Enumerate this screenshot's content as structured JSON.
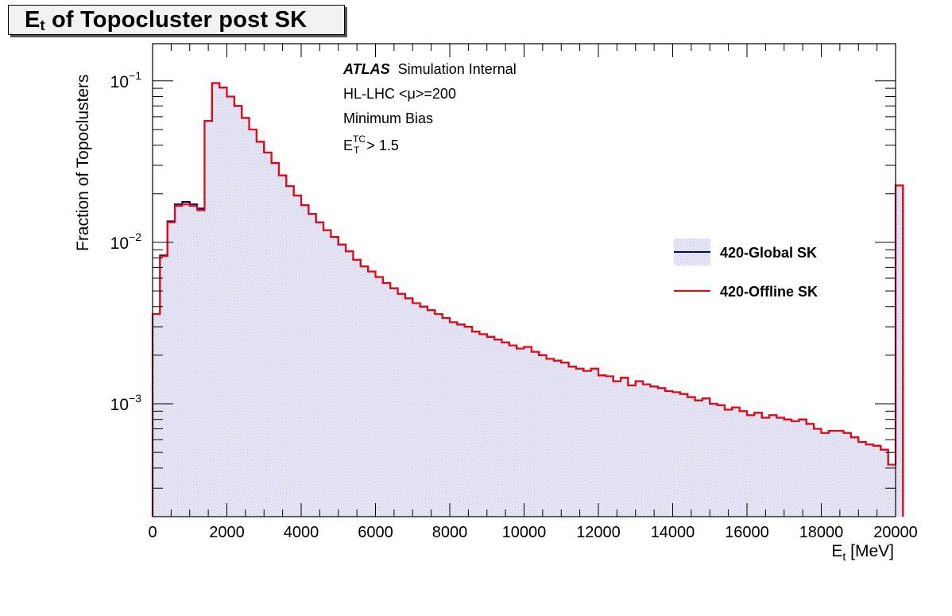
{
  "title": {
    "main": "E",
    "sub": "t",
    "rest": " of Topocluster post SK"
  },
  "annotations": {
    "atlas": "ATLAS",
    "status": "Simulation Internal",
    "line2": "HL-LHC <μ>=200",
    "line3": "Minimum Bias",
    "line4_main": "E",
    "line4_sup": "TC",
    "line4_sub": "T",
    "line4_rest": " > 1.5"
  },
  "axes": {
    "ylabel": "Fraction of Topoclusters",
    "xlabel_main": "E",
    "xlabel_sub": "t",
    "xlabel_rest": " [MeV]",
    "x_ticks": [
      "0",
      "2000",
      "4000",
      "6000",
      "8000",
      "10000",
      "12000",
      "14000",
      "16000",
      "18000",
      "20000"
    ],
    "y_ticks": [
      {
        "base": "10",
        "exp": "−1",
        "value": 0.1
      },
      {
        "base": "10",
        "exp": "−2",
        "value": 0.01
      },
      {
        "base": "10",
        "exp": "−3",
        "value": 0.001
      }
    ]
  },
  "legend": [
    {
      "label": "420-Global SK",
      "color": "#00008b"
    },
    {
      "label": "420-Offline SK",
      "color": "#ff0000"
    }
  ],
  "colors": {
    "global": "#00008b",
    "offline": "#ff0000",
    "fill": "#dcdcf5"
  },
  "chart_data": {
    "type": "histogram",
    "title": "Et of Topocluster post SK",
    "xlabel": "Et [MeV]",
    "ylabel": "Fraction of Topoclusters",
    "y_scale": "log",
    "xlim": [
      0,
      20000
    ],
    "ylim": [
      0.0002,
      0.17
    ],
    "bin_width": 200,
    "legend_position": "right",
    "series": [
      {
        "name": "420-Global SK",
        "values": [
          0.0036,
          0.0083,
          0.0135,
          0.0172,
          0.0178,
          0.0172,
          0.0162,
          0.0565,
          0.097,
          0.091,
          0.08,
          0.07,
          0.059,
          0.05,
          0.042,
          0.036,
          0.031,
          0.026,
          0.0223,
          0.0195,
          0.017,
          0.015,
          0.0133,
          0.0119,
          0.0108,
          0.0097,
          0.0088,
          0.0078,
          0.0071,
          0.0066,
          0.0061,
          0.0056,
          0.0052,
          0.0048,
          0.0045,
          0.0042,
          0.004,
          0.0038,
          0.0036,
          0.0034,
          0.0032,
          0.0031,
          0.003,
          0.0028,
          0.0027,
          0.0026,
          0.0025,
          0.0024,
          0.0023,
          0.0022,
          0.00225,
          0.0021,
          0.002,
          0.0019,
          0.00185,
          0.0018,
          0.0017,
          0.00165,
          0.0016,
          0.00165,
          0.0015,
          0.00148,
          0.00138,
          0.00145,
          0.0013,
          0.00138,
          0.00132,
          0.00128,
          0.00125,
          0.0012,
          0.00118,
          0.00115,
          0.0011,
          0.00105,
          0.00108,
          0.001,
          0.00098,
          0.00092,
          0.00095,
          0.0009,
          0.00085,
          0.00088,
          0.00082,
          0.00085,
          0.00082,
          0.0008,
          0.00078,
          0.0008,
          0.00075,
          0.0007,
          0.00066,
          0.00068,
          0.00068,
          0.00066,
          0.00062,
          0.00058,
          0.00056,
          0.00055,
          0.00052,
          0.00042,
          0.0225
        ]
      },
      {
        "name": "420-Offline SK",
        "values": [
          0.0036,
          0.0082,
          0.0133,
          0.0168,
          0.0172,
          0.0168,
          0.0158,
          0.0565,
          0.097,
          0.091,
          0.08,
          0.07,
          0.059,
          0.05,
          0.042,
          0.036,
          0.031,
          0.026,
          0.0223,
          0.0195,
          0.017,
          0.015,
          0.0133,
          0.0119,
          0.0108,
          0.0097,
          0.0088,
          0.0078,
          0.0071,
          0.0066,
          0.0061,
          0.0056,
          0.0052,
          0.0048,
          0.0045,
          0.0042,
          0.004,
          0.0038,
          0.0036,
          0.0034,
          0.0032,
          0.0031,
          0.003,
          0.0028,
          0.0027,
          0.0026,
          0.0025,
          0.0024,
          0.0023,
          0.0022,
          0.00225,
          0.0021,
          0.002,
          0.0019,
          0.00185,
          0.0018,
          0.0017,
          0.00165,
          0.0016,
          0.00165,
          0.0015,
          0.00148,
          0.00138,
          0.00145,
          0.0013,
          0.00138,
          0.00132,
          0.00128,
          0.00125,
          0.0012,
          0.00118,
          0.00115,
          0.0011,
          0.00105,
          0.00108,
          0.001,
          0.00098,
          0.00092,
          0.00095,
          0.0009,
          0.00085,
          0.00088,
          0.00082,
          0.00085,
          0.00082,
          0.0008,
          0.00078,
          0.0008,
          0.00075,
          0.0007,
          0.00066,
          0.00068,
          0.00068,
          0.00066,
          0.00062,
          0.00058,
          0.00056,
          0.00055,
          0.00052,
          0.00042,
          0.0225
        ]
      }
    ]
  }
}
